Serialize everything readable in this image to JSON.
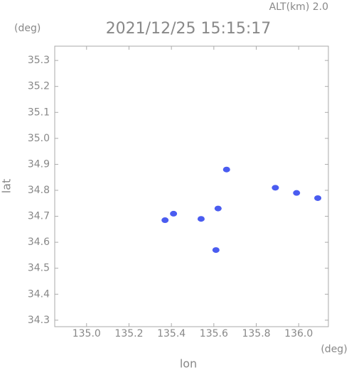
{
  "chart_data": {
    "type": "scatter",
    "title": "2021/12/25 15:15:17",
    "subtitle": "ALT(km)  2.0",
    "y_unit": "(deg)",
    "x_unit": "(deg)",
    "xlabel": "lon",
    "ylabel": "lat",
    "series": [
      {
        "name": null,
        "color": "#4a5cf0",
        "x": [
          135.37,
          135.41,
          135.54,
          135.61,
          135.62,
          135.66,
          135.89,
          135.99,
          136.09
        ],
        "values": [
          34.685,
          34.71,
          34.69,
          34.57,
          34.73,
          34.88,
          34.81,
          34.79,
          34.77
        ]
      }
    ],
    "xlim": [
      134.85,
      136.14
    ],
    "xticks": [
      {
        "value": 135,
        "label": "135.0"
      },
      135.2,
      135.4,
      135.6,
      135.8,
      {
        "value": 136,
        "label": "136.0"
      }
    ],
    "ylim": [
      34.275,
      35.355
    ],
    "yticks": [
      34.3,
      34.4,
      34.5,
      34.6,
      34.7,
      34.8,
      34.9,
      {
        "value": 35,
        "label": "35.0"
      },
      35.1,
      35.2,
      35.3
    ]
  }
}
